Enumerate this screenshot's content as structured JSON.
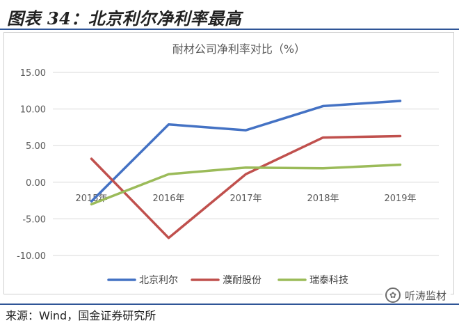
{
  "header": {
    "figure_title": "图表 34：北京利尔净利率最高"
  },
  "footer": {
    "source": "来源：Wind，国金证券研究所"
  },
  "watermark": {
    "text": "听涛监材",
    "icon": "wechat-icon"
  },
  "colors": {
    "rule": "#2f5597",
    "grid": "#d9d9d9"
  },
  "chart_data": {
    "type": "line",
    "title": "耐材公司净利率对比（%）",
    "xlabel": "",
    "ylabel": "",
    "categories": [
      "2015年",
      "2016年",
      "2017年",
      "2018年",
      "2019年"
    ],
    "ylim": [
      -10,
      15
    ],
    "yticks": [
      15,
      10,
      5,
      0,
      -5,
      -10
    ],
    "ytick_labels": [
      "15.00",
      "10.00",
      "5.00",
      "0.00",
      "-5.00",
      "-10.00"
    ],
    "grid": true,
    "legend_position": "bottom",
    "series": [
      {
        "name": "北京利尔",
        "color": "#4472c4",
        "values": [
          -2.6,
          7.9,
          7.1,
          10.4,
          11.1
        ]
      },
      {
        "name": "濮耐股份",
        "color": "#c0504d",
        "values": [
          3.2,
          -7.6,
          1.1,
          6.1,
          6.3
        ]
      },
      {
        "name": "瑞泰科技",
        "color": "#9bbb59",
        "values": [
          -3.0,
          1.1,
          2.0,
          1.9,
          2.4
        ]
      }
    ]
  }
}
